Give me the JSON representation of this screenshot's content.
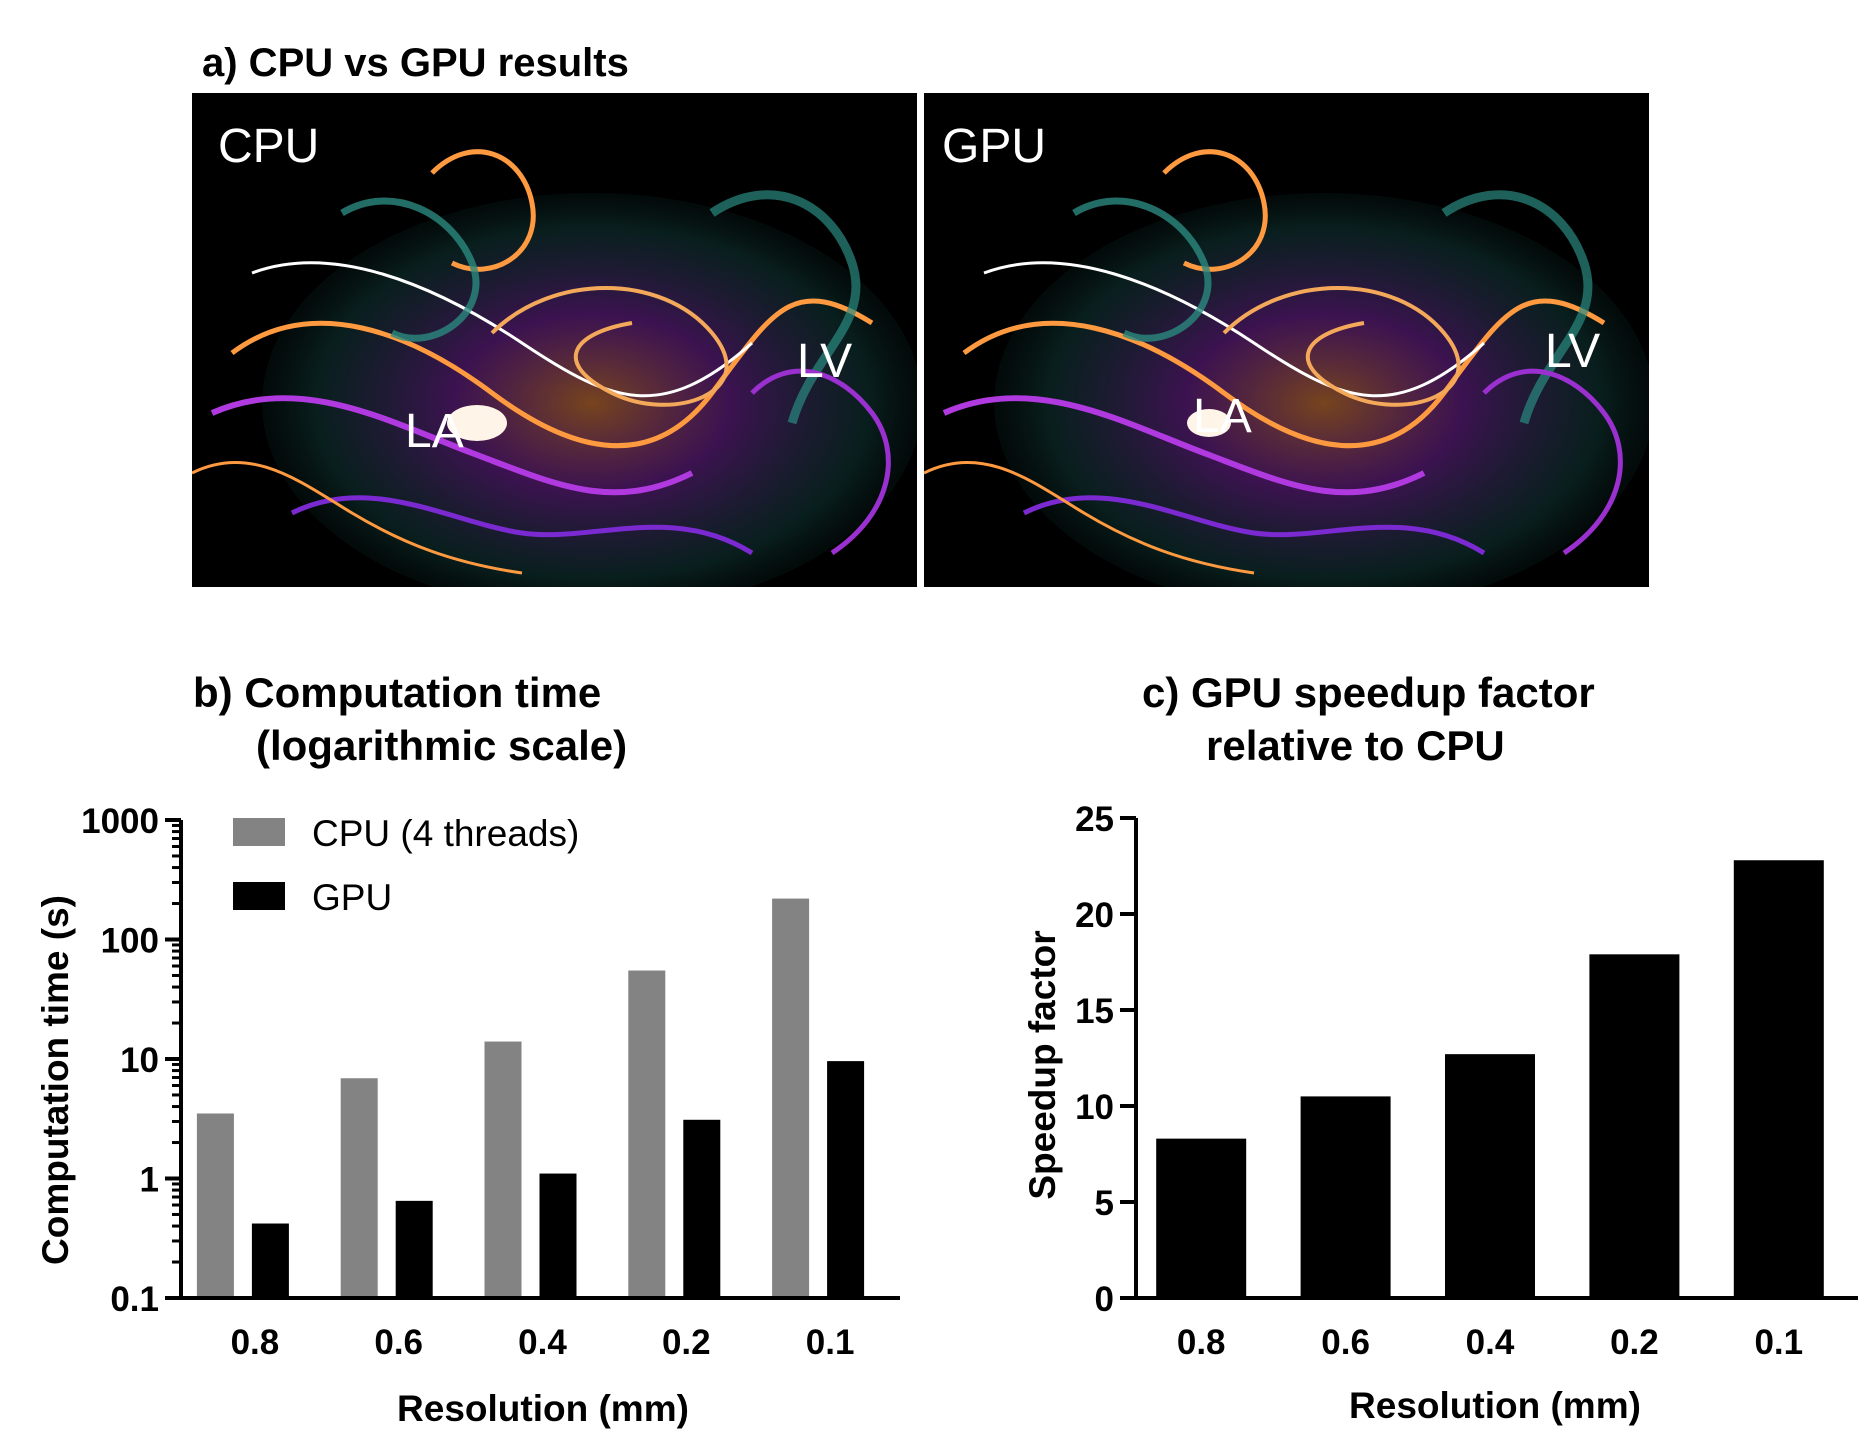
{
  "panel_a": {
    "title": "a) CPU vs GPU results",
    "images": [
      {
        "label": "CPU",
        "la_label": "LA",
        "lv_label": "LV"
      },
      {
        "label": "GPU",
        "la_label": "LA",
        "lv_label": "LV"
      }
    ]
  },
  "chart_data": [
    {
      "type": "bar",
      "title": "b) Computation time",
      "subtitle": "(logarithmic scale)",
      "xlabel": "Resolution (mm)",
      "ylabel": "Computation time (s)",
      "yscale": "log",
      "ylim": [
        0.1,
        1000
      ],
      "yticks": [
        "0.1",
        "1",
        "10",
        "100",
        "1000"
      ],
      "categories": [
        "0.8",
        "0.6",
        "0.4",
        "0.2",
        "0.1"
      ],
      "legend_position": "top-left",
      "series": [
        {
          "name": "CPU (4 threads)",
          "color": "#838383",
          "values": [
            3.5,
            6.9,
            14,
            55,
            220
          ]
        },
        {
          "name": "GPU",
          "color": "#000000",
          "values": [
            0.42,
            0.65,
            1.1,
            3.1,
            9.6
          ]
        }
      ]
    },
    {
      "type": "bar",
      "title": "c) GPU speedup factor",
      "subtitle": "relative to CPU",
      "xlabel": "Resolution (mm)",
      "ylabel": "Speedup factor",
      "ylim": [
        0,
        25
      ],
      "yticks": [
        "0",
        "5",
        "10",
        "15",
        "20",
        "25"
      ],
      "categories": [
        "0.8",
        "0.6",
        "0.4",
        "0.2",
        "0.1"
      ],
      "series": [
        {
          "name": "Speedup",
          "color": "#000000",
          "values": [
            8.3,
            10.5,
            12.7,
            17.9,
            22.8
          ]
        }
      ]
    }
  ]
}
